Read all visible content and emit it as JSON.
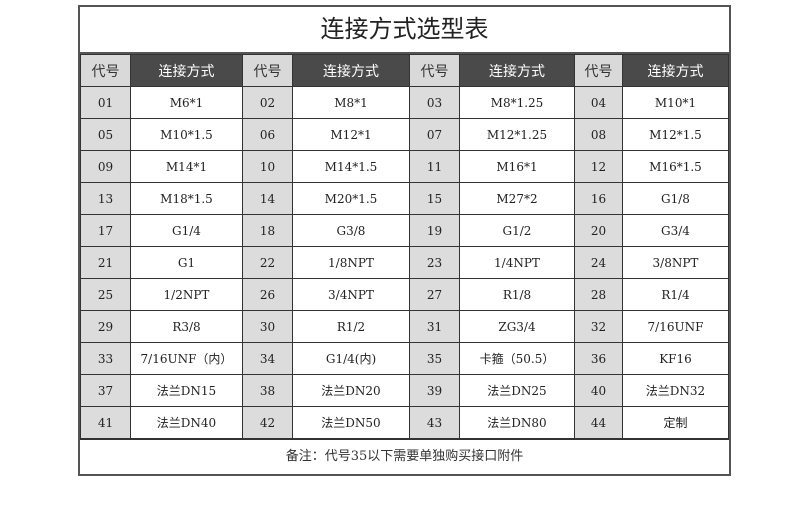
{
  "title": "连接方式选型表",
  "headers": {
    "code": "代号",
    "conn": "连接方式"
  },
  "rows": [
    [
      [
        "01",
        "M6*1"
      ],
      [
        "02",
        "M8*1"
      ],
      [
        "03",
        "M8*1.25"
      ],
      [
        "04",
        "M10*1"
      ]
    ],
    [
      [
        "05",
        "M10*1.5"
      ],
      [
        "06",
        "M12*1"
      ],
      [
        "07",
        "M12*1.25"
      ],
      [
        "08",
        "M12*1.5"
      ]
    ],
    [
      [
        "09",
        "M14*1"
      ],
      [
        "10",
        "M14*1.5"
      ],
      [
        "11",
        "M16*1"
      ],
      [
        "12",
        "M16*1.5"
      ]
    ],
    [
      [
        "13",
        "M18*1.5"
      ],
      [
        "14",
        "M20*1.5"
      ],
      [
        "15",
        "M27*2"
      ],
      [
        "16",
        "G1/8"
      ]
    ],
    [
      [
        "17",
        "G1/4"
      ],
      [
        "18",
        "G3/8"
      ],
      [
        "19",
        "G1/2"
      ],
      [
        "20",
        "G3/4"
      ]
    ],
    [
      [
        "21",
        "G1"
      ],
      [
        "22",
        "1/8NPT"
      ],
      [
        "23",
        "1/4NPT"
      ],
      [
        "24",
        "3/8NPT"
      ]
    ],
    [
      [
        "25",
        "1/2NPT"
      ],
      [
        "26",
        "3/4NPT"
      ],
      [
        "27",
        "R1/8"
      ],
      [
        "28",
        "R1/4"
      ]
    ],
    [
      [
        "29",
        "R3/8"
      ],
      [
        "30",
        "R1/2"
      ],
      [
        "31",
        "ZG3/4"
      ],
      [
        "32",
        "7/16UNF"
      ]
    ],
    [
      [
        "33",
        "7/16UNF（内）"
      ],
      [
        "34",
        "G1/4(内)"
      ],
      [
        "35",
        "卡箍（50.5）"
      ],
      [
        "36",
        "KF16"
      ]
    ],
    [
      [
        "37",
        "法兰DN15"
      ],
      [
        "38",
        "法兰DN20"
      ],
      [
        "39",
        "法兰DN25"
      ],
      [
        "40",
        "法兰DN32"
      ]
    ],
    [
      [
        "41",
        "法兰DN40"
      ],
      [
        "42",
        "法兰DN50"
      ],
      [
        "43",
        "法兰DN80"
      ],
      [
        "44",
        "定制"
      ]
    ]
  ],
  "note": "备注：代号35以下需要单独购买接口附件"
}
